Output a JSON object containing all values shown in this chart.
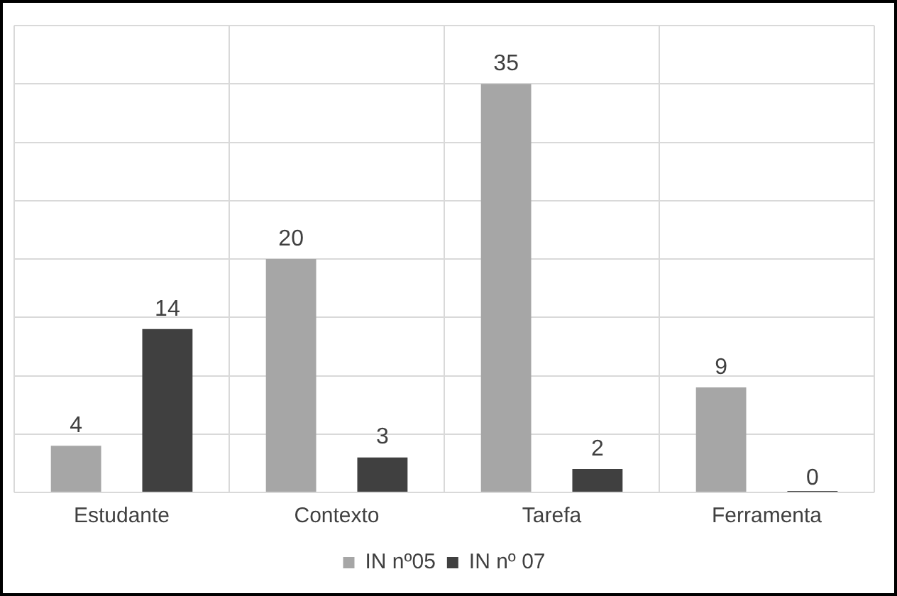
{
  "chart_data": {
    "type": "bar",
    "categories": [
      "Estudante",
      "Contexto",
      "Tarefa",
      "Ferramenta"
    ],
    "series": [
      {
        "name": "IN nº05",
        "color": "#a6a6a6",
        "values": [
          4,
          20,
          35,
          9
        ]
      },
      {
        "name": "IN nº 07",
        "color": "#404040",
        "values": [
          14,
          3,
          2,
          0
        ]
      }
    ],
    "ylim": [
      0,
      40
    ],
    "yticks": [
      {
        "value": 0,
        "label": null
      },
      {
        "value": 5,
        "label": null
      },
      {
        "value": 10,
        "label": null
      },
      {
        "value": 15,
        "label": null
      },
      {
        "value": 20,
        "label": null
      },
      {
        "value": 25,
        "label": null
      },
      {
        "value": 30,
        "label": null
      },
      {
        "value": 35,
        "label": null
      },
      {
        "value": 40,
        "label": null
      }
    ],
    "tick_labels": "x",
    "grid": true,
    "legend": "bottom",
    "data_labels": true
  }
}
